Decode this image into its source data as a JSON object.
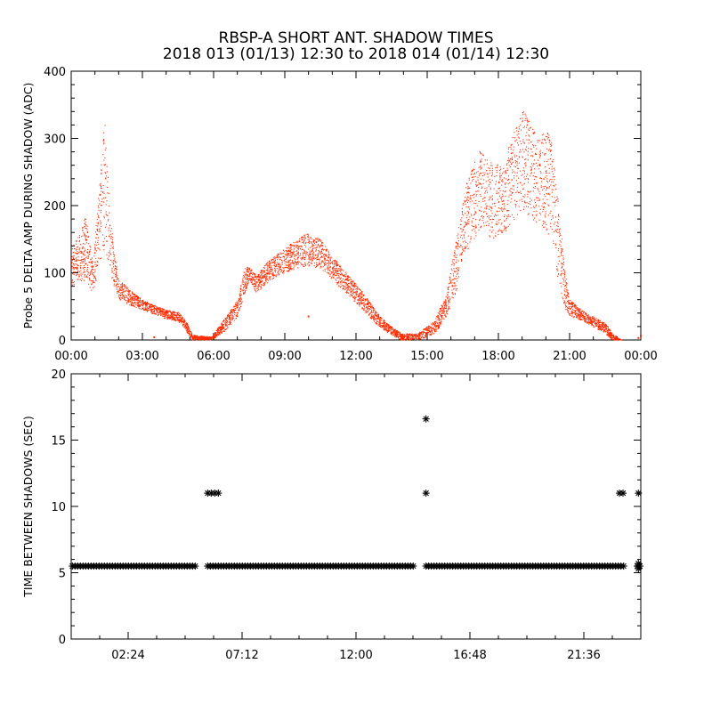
{
  "title": "RBSP-A SHORT ANT. SHADOW TIMES",
  "subtitle": "2018 013 (01/13) 12:30 to 2018 014 (01/14) 12:30",
  "colors": {
    "amp": "#ff2a00",
    "shadow": "#000000"
  },
  "chart_data": [
    {
      "type": "scatter",
      "ylabel": "Probe 5 DELTA AMP DURING SHADOW (ADC)",
      "xlabel": "",
      "xlim_hours": [
        0,
        24
      ],
      "ylim": [
        0,
        400
      ],
      "x_tick_labels": [
        "00:00",
        "03:00",
        "06:00",
        "09:00",
        "12:00",
        "15:00",
        "18:00",
        "21:00",
        "00:00"
      ],
      "y_tick_labels": [
        "0",
        "100",
        "200",
        "300",
        "400"
      ],
      "series": [
        {
          "color": "#ff2a00",
          "envelope": [
            {
              "t": 0.0,
              "lo": 80,
              "hi": 135
            },
            {
              "t": 0.3,
              "lo": 85,
              "hi": 160
            },
            {
              "t": 0.6,
              "lo": 90,
              "hi": 185
            },
            {
              "t": 0.9,
              "lo": 70,
              "hi": 115
            },
            {
              "t": 1.2,
              "lo": 110,
              "hi": 240
            },
            {
              "t": 1.4,
              "lo": 140,
              "hi": 335
            },
            {
              "t": 1.6,
              "lo": 100,
              "hi": 200
            },
            {
              "t": 1.8,
              "lo": 80,
              "hi": 130
            },
            {
              "t": 2.0,
              "lo": 60,
              "hi": 90
            },
            {
              "t": 2.5,
              "lo": 52,
              "hi": 75
            },
            {
              "t": 3.0,
              "lo": 45,
              "hi": 60
            },
            {
              "t": 3.5,
              "lo": 38,
              "hi": 52
            },
            {
              "t": 4.0,
              "lo": 32,
              "hi": 45
            },
            {
              "t": 4.5,
              "lo": 28,
              "hi": 42
            },
            {
              "t": 4.8,
              "lo": 15,
              "hi": 30
            },
            {
              "t": 5.1,
              "lo": 0,
              "hi": 8
            },
            {
              "t": 5.9,
              "lo": 0,
              "hi": 5
            },
            {
              "t": 6.5,
              "lo": 15,
              "hi": 35
            },
            {
              "t": 7.0,
              "lo": 35,
              "hi": 60
            },
            {
              "t": 7.3,
              "lo": 70,
              "hi": 110
            },
            {
              "t": 7.5,
              "lo": 90,
              "hi": 110
            },
            {
              "t": 7.8,
              "lo": 70,
              "hi": 95
            },
            {
              "t": 8.2,
              "lo": 85,
              "hi": 115
            },
            {
              "t": 8.7,
              "lo": 95,
              "hi": 130
            },
            {
              "t": 9.3,
              "lo": 105,
              "hi": 145
            },
            {
              "t": 9.9,
              "lo": 110,
              "hi": 160
            },
            {
              "t": 10.5,
              "lo": 105,
              "hi": 150
            },
            {
              "t": 11.0,
              "lo": 90,
              "hi": 125
            },
            {
              "t": 11.7,
              "lo": 65,
              "hi": 95
            },
            {
              "t": 12.3,
              "lo": 45,
              "hi": 70
            },
            {
              "t": 12.8,
              "lo": 25,
              "hi": 45
            },
            {
              "t": 13.3,
              "lo": 12,
              "hi": 25
            },
            {
              "t": 13.9,
              "lo": 0,
              "hi": 10
            },
            {
              "t": 14.6,
              "lo": 0,
              "hi": 10
            },
            {
              "t": 15.3,
              "lo": 10,
              "hi": 30
            },
            {
              "t": 15.8,
              "lo": 35,
              "hi": 70
            },
            {
              "t": 16.2,
              "lo": 70,
              "hi": 150
            },
            {
              "t": 16.6,
              "lo": 130,
              "hi": 230
            },
            {
              "t": 17.2,
              "lo": 165,
              "hi": 285
            },
            {
              "t": 17.8,
              "lo": 150,
              "hi": 260
            },
            {
              "t": 18.3,
              "lo": 160,
              "hi": 275
            },
            {
              "t": 19.0,
              "lo": 195,
              "hi": 345
            },
            {
              "t": 19.6,
              "lo": 175,
              "hi": 305
            },
            {
              "t": 20.2,
              "lo": 150,
              "hi": 310
            },
            {
              "t": 20.5,
              "lo": 90,
              "hi": 210
            },
            {
              "t": 20.8,
              "lo": 45,
              "hi": 100
            },
            {
              "t": 21.0,
              "lo": 35,
              "hi": 60
            },
            {
              "t": 21.5,
              "lo": 30,
              "hi": 45
            },
            {
              "t": 22.0,
              "lo": 20,
              "hi": 35
            },
            {
              "t": 22.5,
              "lo": 10,
              "hi": 25
            },
            {
              "t": 22.8,
              "lo": 0,
              "hi": 10
            },
            {
              "t": 23.2,
              "lo": 0,
              "hi": 0
            }
          ],
          "isolated_points": [
            [
              23.9,
              3
            ],
            [
              24.0,
              6
            ],
            [
              10.0,
              35
            ],
            [
              3.5,
              4
            ]
          ]
        }
      ]
    },
    {
      "type": "scatter",
      "ylabel": "TIME BETWEEN SHADOWS (SEC)",
      "xlabel": "",
      "xlim_hours": [
        0,
        24
      ],
      "ylim": [
        0,
        20
      ],
      "x_tick_labels": [
        "02:24",
        "07:12",
        "12:00",
        "16:48",
        "21:36"
      ],
      "x_tick_hours": [
        2.4,
        7.2,
        12.0,
        16.8,
        21.6
      ],
      "y_tick_labels": [
        "0",
        "5",
        "10",
        "15",
        "20"
      ],
      "marker": "asterisk",
      "series": [
        {
          "color": "#000000",
          "value_sec": 5.5,
          "segments_hours": [
            [
              0.05,
              5.3
            ],
            [
              5.75,
              14.5
            ],
            [
              14.95,
              23.35
            ],
            [
              23.85,
              24.0
            ]
          ],
          "outliers": [
            [
              5.75,
              11.0
            ],
            [
              5.9,
              11.0
            ],
            [
              6.05,
              11.0
            ],
            [
              6.2,
              11.0
            ],
            [
              14.95,
              16.6
            ],
            [
              14.95,
              11.0
            ],
            [
              23.1,
              11.0
            ],
            [
              23.25,
              11.0
            ],
            [
              23.9,
              11.0
            ],
            [
              23.9,
              5.3
            ],
            [
              23.9,
              5.7
            ]
          ]
        }
      ]
    }
  ]
}
